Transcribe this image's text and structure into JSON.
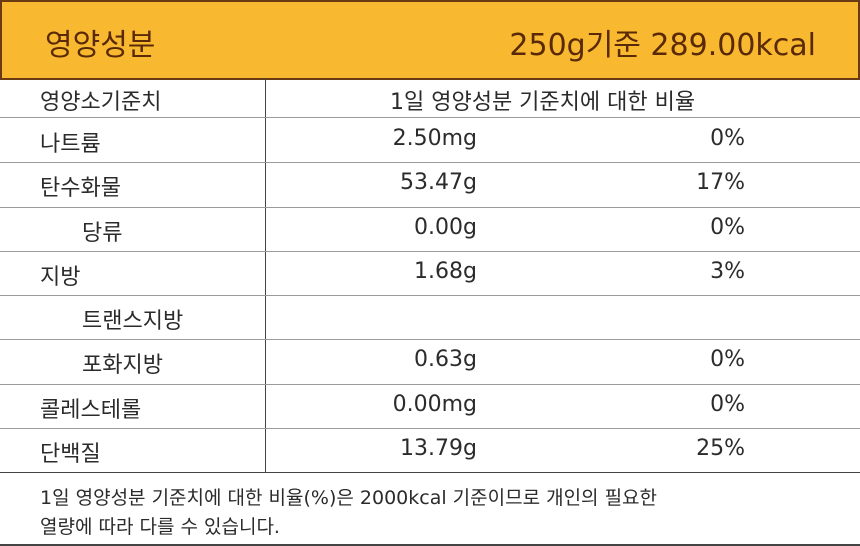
{
  "header": {
    "title": "영양성분",
    "basis": "250g기준 289.00kcal"
  },
  "table": {
    "columns": [
      "영양소기준치",
      "1일 영양성분 기준치에 대한 비율"
    ],
    "rows": [
      {
        "name": "나트륨",
        "amount": "2.50mg",
        "percent": "0%"
      },
      {
        "name": "탄수화물",
        "amount": "53.47g",
        "percent": "17%",
        "sub": [
          {
            "name": "당류",
            "amount": "0.00g",
            "percent": "0%"
          }
        ]
      },
      {
        "name": "지방",
        "amount": "1.68g",
        "percent": "3%",
        "sub": [
          {
            "name": "트랜스지방"
          },
          {
            "name": "포화지방",
            "amount": "0.63g",
            "percent": "0%"
          }
        ]
      },
      {
        "name": "콜레스테롤",
        "amount": "0.00mg",
        "percent": "0%"
      },
      {
        "name": "단백질",
        "amount": "13.79g",
        "percent": "25%"
      }
    ]
  },
  "footer": {
    "lines": [
      "1일 영양성분 기준치에 대한 비율(%)은 2000kcal 기준이므로 개인의 필요한",
      "열량에 따라 다를 수 있습니다."
    ]
  }
}
